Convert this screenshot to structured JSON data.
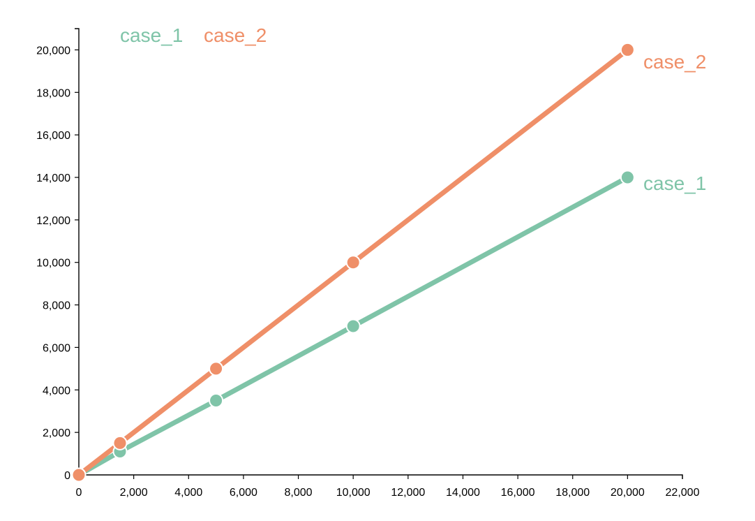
{
  "chart_data": {
    "type": "line",
    "title": "",
    "xlabel": "",
    "ylabel": "",
    "xlim": [
      0,
      22000
    ],
    "ylim": [
      0,
      21000
    ],
    "x_ticks": [
      0,
      2000,
      4000,
      6000,
      8000,
      10000,
      12000,
      14000,
      16000,
      18000,
      20000,
      22000
    ],
    "x_tick_labels": [
      "0",
      "2,000",
      "4,000",
      "6,000",
      "8,000",
      "10,000",
      "12,000",
      "14,000",
      "16,000",
      "18,000",
      "20,000",
      "22,000"
    ],
    "y_ticks": [
      0,
      2000,
      4000,
      6000,
      8000,
      10000,
      12000,
      14000,
      16000,
      18000,
      20000
    ],
    "y_tick_labels": [
      "0",
      "2,000",
      "4,000",
      "6,000",
      "8,000",
      "10,000",
      "12,000",
      "14,000",
      "16,000",
      "18,000",
      "20,000"
    ],
    "grid": false,
    "legend": "top-left",
    "series": [
      {
        "name": "case_1",
        "color": "#7fc4a8",
        "x": [
          0,
          1500,
          5000,
          10000,
          20000
        ],
        "y": [
          0,
          1100,
          3500,
          7000,
          14000
        ]
      },
      {
        "name": "case_2",
        "color": "#ef8f68",
        "x": [
          0,
          1500,
          5000,
          10000,
          20000
        ],
        "y": [
          0,
          1500,
          5000,
          10000,
          20000
        ]
      }
    ]
  }
}
